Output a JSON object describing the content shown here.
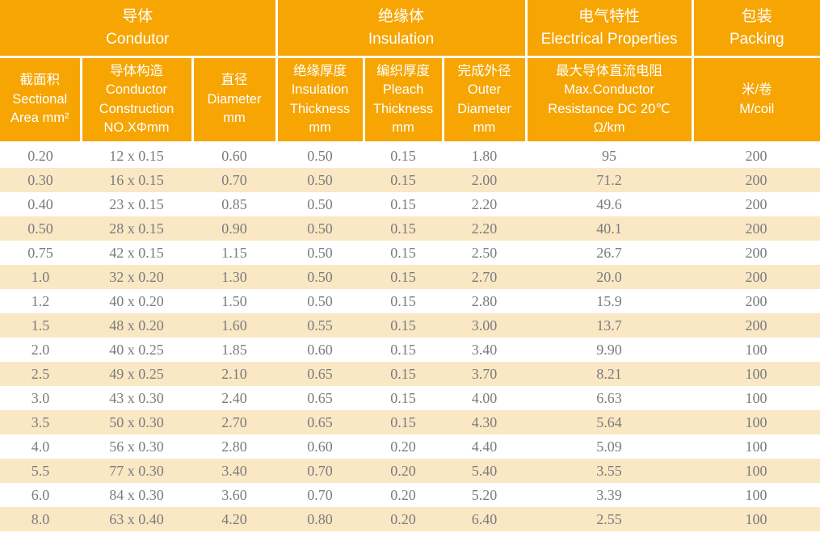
{
  "colors": {
    "header_bg": "#F6A502",
    "header_text": "#FFFFFF",
    "stripe_bg": "#FAE7C4",
    "row_bg": "#FFFFFF",
    "data_text": "#7B7C7E",
    "separator": "#FFFFFF"
  },
  "table": {
    "groups": [
      {
        "label": "导体\nCondutor",
        "colspan": 3
      },
      {
        "label": "绝缘体\nInsulation",
        "colspan": 3
      },
      {
        "label": "电气特性\nElectrical Properties",
        "colspan": 1
      },
      {
        "label": "包装\nPacking",
        "colspan": 1
      }
    ],
    "columns": [
      {
        "label": "截面积\nSectional\nArea mm²"
      },
      {
        "label": "导体构造\nConductor\nConstruction\nNO.XΦmm"
      },
      {
        "label": "直径\nDiameter\nmm"
      },
      {
        "label": "绝缘厚度\nInsulation\nThickness\nmm"
      },
      {
        "label": "编织厚度\nPleach\nThickness\nmm"
      },
      {
        "label": "完成外径\nOuter\nDiameter\nmm"
      },
      {
        "label": "最大导体直流电阻\nMax.Conductor\nResistance DC 20℃\nΩ/km"
      },
      {
        "label": "米/卷\nM/coil"
      }
    ],
    "rows": [
      [
        "0.20",
        "12 x 0.15",
        "0.60",
        "0.50",
        "0.15",
        "1.80",
        "95",
        "200"
      ],
      [
        "0.30",
        "16 x 0.15",
        "0.70",
        "0.50",
        "0.15",
        "2.00",
        "71.2",
        "200"
      ],
      [
        "0.40",
        "23 x 0.15",
        "0.85",
        "0.50",
        "0.15",
        "2.20",
        "49.6",
        "200"
      ],
      [
        "0.50",
        "28 x 0.15",
        "0.90",
        "0.50",
        "0.15",
        "2.20",
        "40.1",
        "200"
      ],
      [
        "0.75",
        "42 x 0.15",
        "1.15",
        "0.50",
        "0.15",
        "2.50",
        "26.7",
        "200"
      ],
      [
        "1.0",
        "32 x 0.20",
        "1.30",
        "0.50",
        "0.15",
        "2.70",
        "20.0",
        "200"
      ],
      [
        "1.2",
        "40 x 0.20",
        "1.50",
        "0.50",
        "0.15",
        "2.80",
        "15.9",
        "200"
      ],
      [
        "1.5",
        "48 x 0.20",
        "1.60",
        "0.55",
        "0.15",
        "3.00",
        "13.7",
        "200"
      ],
      [
        "2.0",
        "40 x 0.25",
        "1.85",
        "0.60",
        "0.15",
        "3.40",
        "9.90",
        "100"
      ],
      [
        "2.5",
        "49 x 0.25",
        "2.10",
        "0.65",
        "0.15",
        "3.70",
        "8.21",
        "100"
      ],
      [
        "3.0",
        "43 x 0.30",
        "2.40",
        "0.65",
        "0.15",
        "4.00",
        "6.63",
        "100"
      ],
      [
        "3.5",
        "50 x 0.30",
        "2.70",
        "0.65",
        "0.15",
        "4.30",
        "5.64",
        "100"
      ],
      [
        "4.0",
        "56 x 0.30",
        "2.80",
        "0.60",
        "0.20",
        "4.40",
        "5.09",
        "100"
      ],
      [
        "5.5",
        "77 x 0.30",
        "3.40",
        "0.70",
        "0.20",
        "5.40",
        "3.55",
        "100"
      ],
      [
        "6.0",
        "84 x 0.30",
        "3.60",
        "0.70",
        "0.20",
        "5.20",
        "3.39",
        "100"
      ],
      [
        "8.0",
        "63 x 0.40",
        "4.20",
        "0.80",
        "0.20",
        "6.40",
        "2.55",
        "100"
      ]
    ]
  }
}
